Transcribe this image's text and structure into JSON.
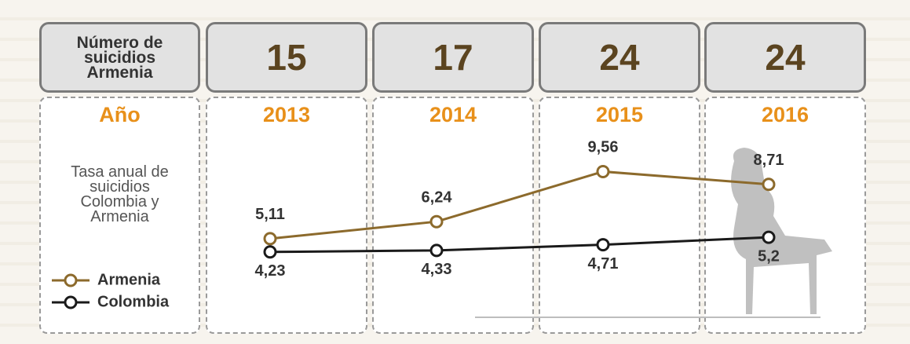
{
  "chart_data": {
    "type": "line",
    "counts_label": [
      "Número de",
      "suicidios",
      "Armenia"
    ],
    "counts": [
      15,
      17,
      24,
      24
    ],
    "categories_label": "Año",
    "categories": [
      "2013",
      "2014",
      "2015",
      "2016"
    ],
    "rate_label": [
      "Tasa anual de",
      "suicidios",
      "Colombia y",
      "Armenia"
    ],
    "series": [
      {
        "name": "Armenia",
        "color": "#8c6a2c",
        "values": [
          5.11,
          6.24,
          9.56,
          8.71
        ],
        "value_labels": [
          "5,11",
          "6,24",
          "9,56",
          "8,71"
        ]
      },
      {
        "name": "Colombia",
        "color": "#1a1a1a",
        "values": [
          4.23,
          4.33,
          4.71,
          5.2
        ],
        "value_labels": [
          "4,23",
          "4,33",
          "4,71",
          "5,2"
        ]
      }
    ]
  }
}
